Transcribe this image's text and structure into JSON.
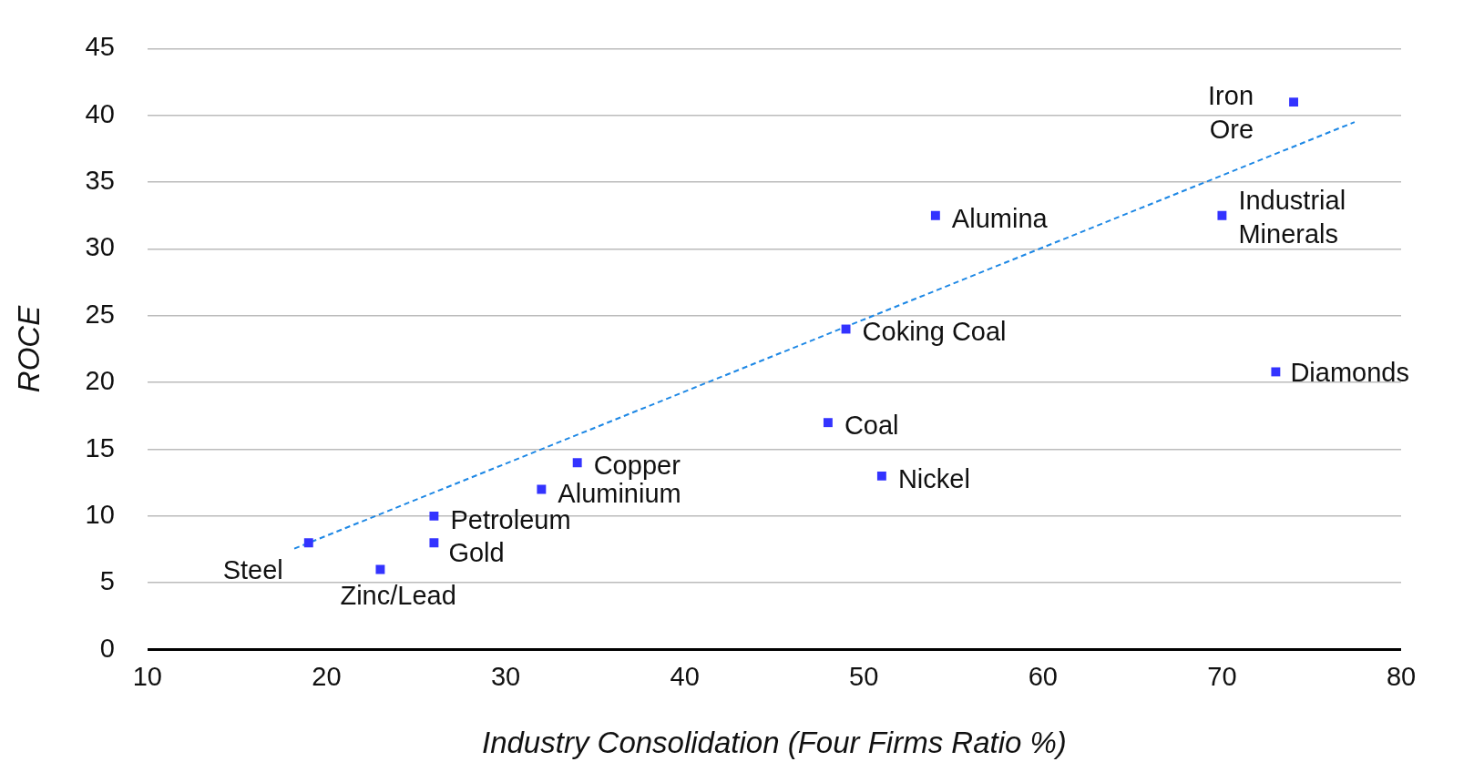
{
  "chart_data": {
    "type": "scatter",
    "xlabel": "Industry Consolidation (Four Firms Ratio %)",
    "ylabel": "ROCE",
    "xlim": [
      10,
      80
    ],
    "xticks": [
      10,
      20,
      30,
      40,
      50,
      60,
      70,
      80
    ],
    "ylim": [
      0,
      45
    ],
    "yticks": [
      0,
      5,
      10,
      15,
      20,
      25,
      30,
      35,
      40,
      45
    ],
    "grid": "y",
    "legend": false,
    "series": [
      {
        "type": "scatter",
        "marker": "square",
        "color": "#3333ff",
        "x": [
          19,
          23,
          26,
          26,
          32,
          34,
          48,
          49,
          51,
          54,
          70,
          73,
          74
        ],
        "values": [
          8,
          6,
          10,
          8,
          12,
          14,
          17,
          24,
          13,
          32.5,
          32.5,
          20.8,
          41
        ],
        "value_labels": [
          "Steel",
          "Zinc/Lead",
          "Petroleum",
          "Gold",
          "Aluminium",
          "Copper",
          "Coal",
          "Coking Coal",
          "Nickel",
          "Alumina",
          "Industrial\nMinerals",
          "Diamonds",
          "Iron\nOre"
        ]
      },
      {
        "type": "line",
        "marker": "none",
        "line_style": "dashed",
        "color": "#1e88e5",
        "x": [
          18.2,
          77.4
        ],
        "values": [
          7.56,
          39.5
        ]
      }
    ]
  }
}
